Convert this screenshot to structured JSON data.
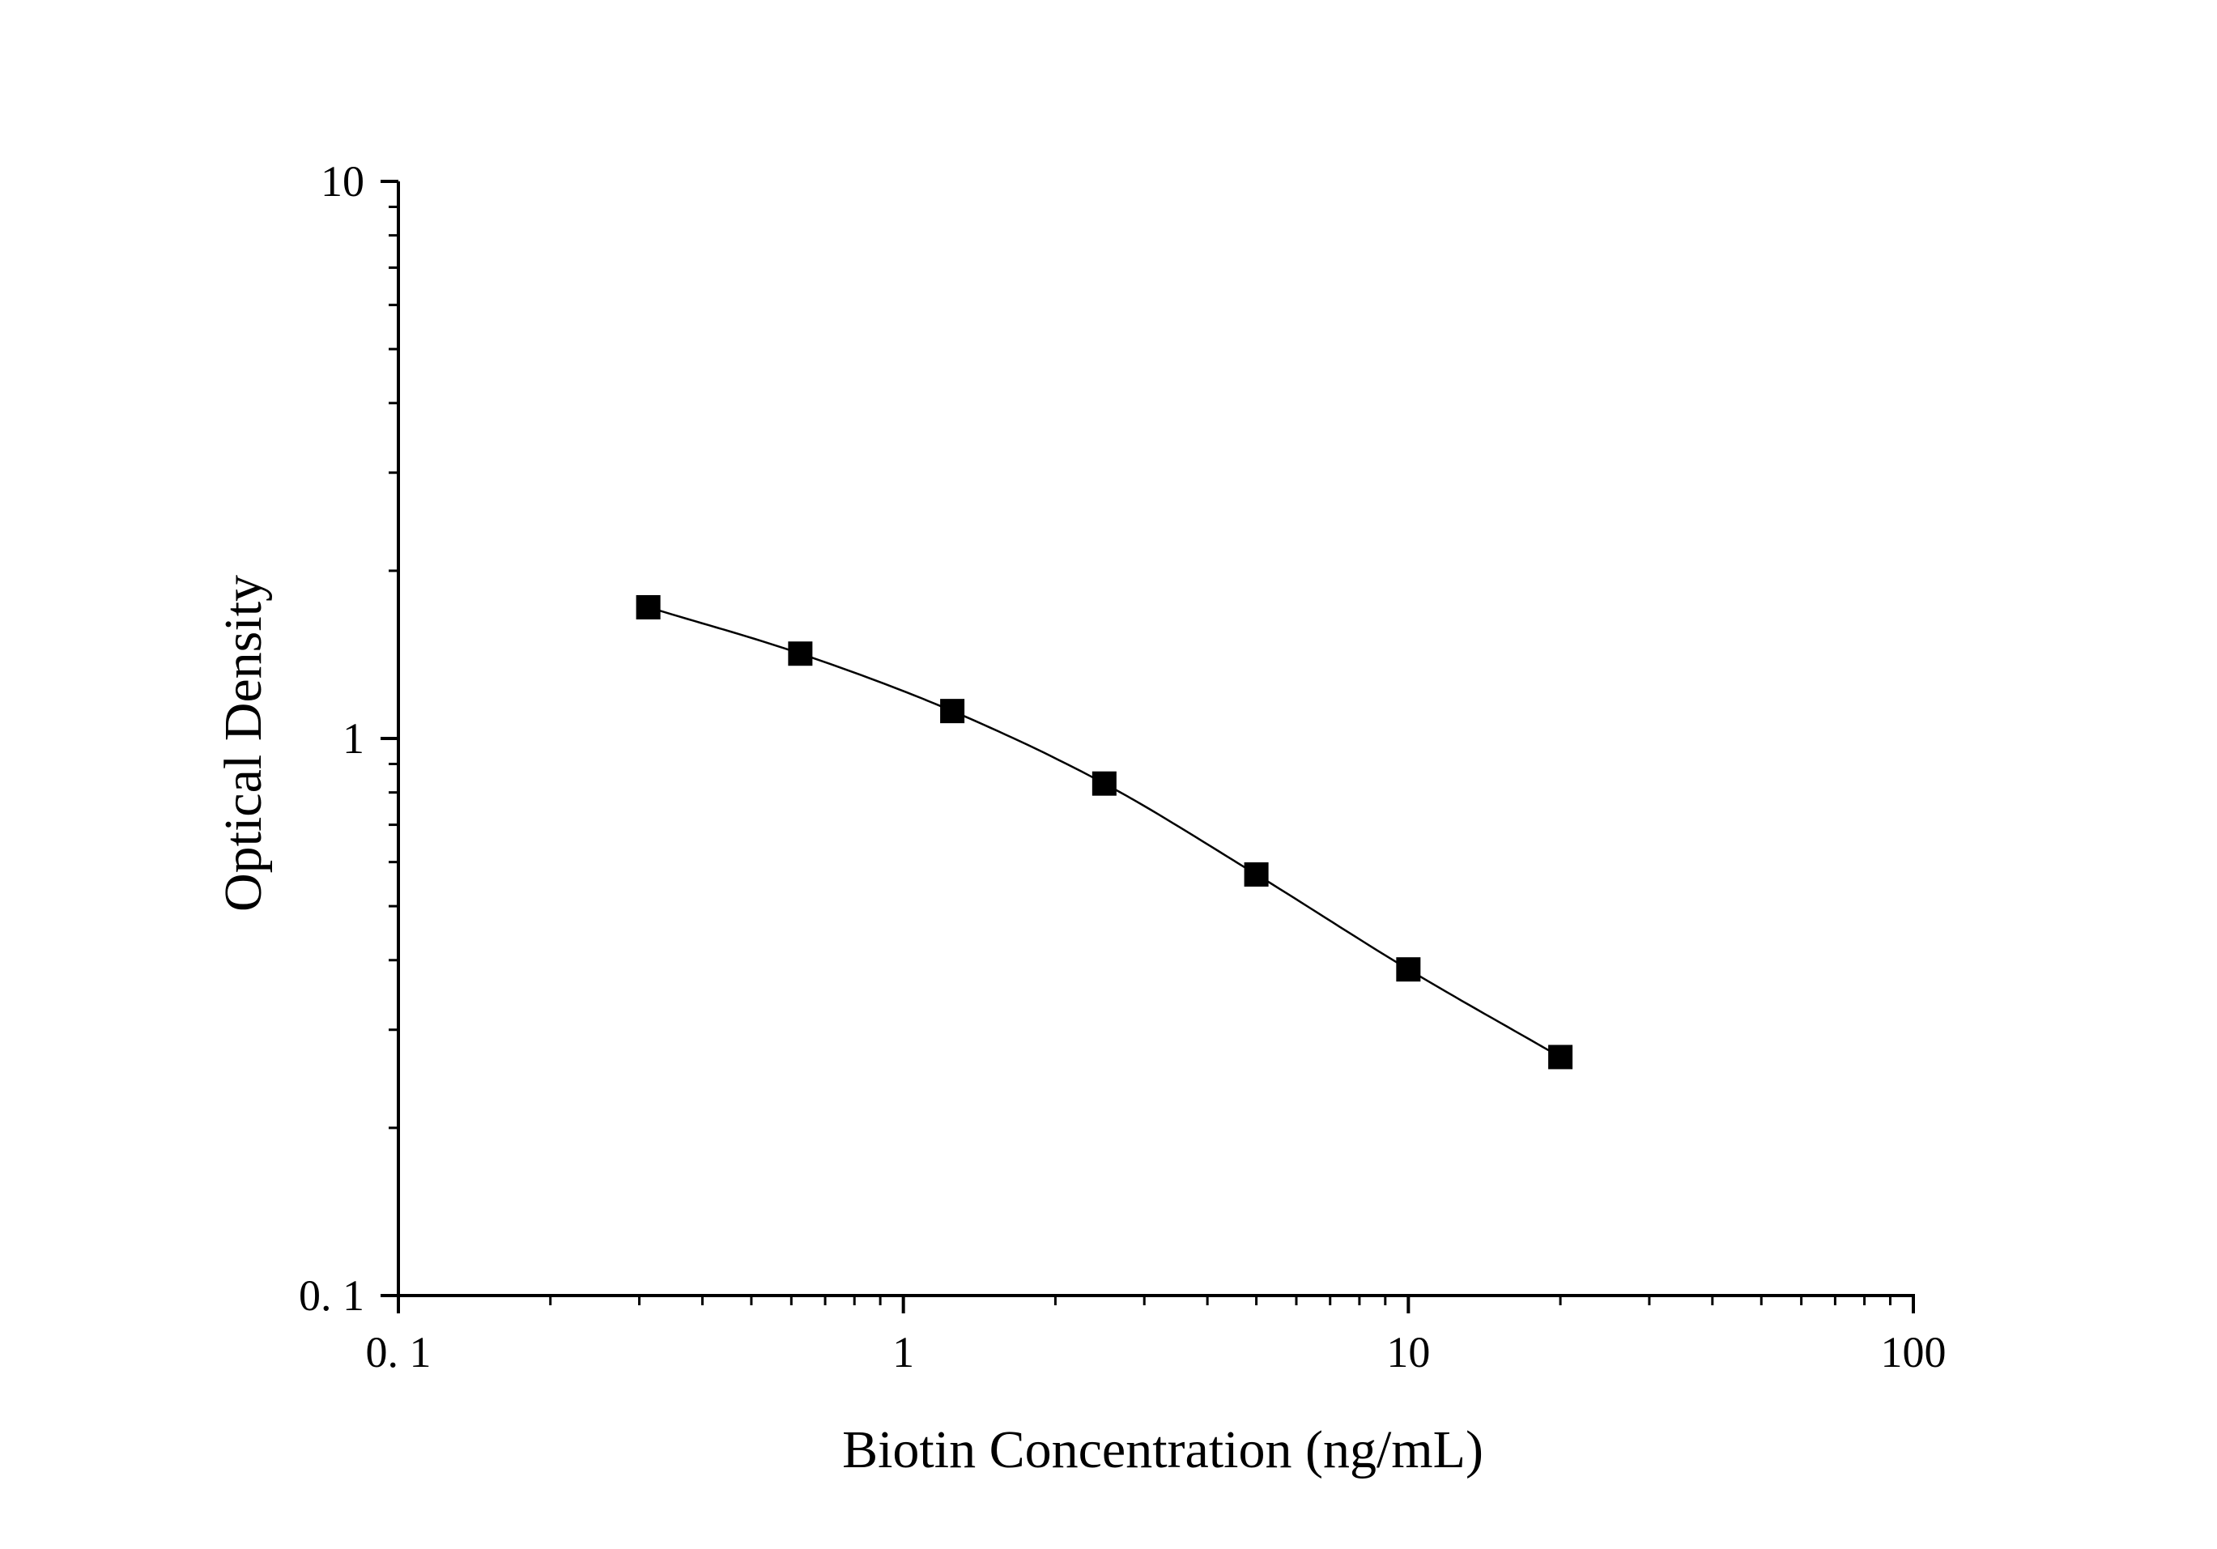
{
  "chart_data": {
    "type": "scatter",
    "xlabel": "Biotin Concentration (ng/mL)",
    "ylabel": "Optical Density",
    "xscale": "log",
    "yscale": "log",
    "xlim": [
      0.1,
      100
    ],
    "ylim": [
      0.1,
      10
    ],
    "xticks": [
      {
        "value": 0.1,
        "label": "0. 1"
      },
      {
        "value": 1,
        "label": "1"
      },
      {
        "value": 10,
        "label": "10"
      },
      {
        "value": 100,
        "label": "100"
      }
    ],
    "yticks": [
      {
        "value": 0.1,
        "label": "0. 1"
      },
      {
        "value": 1,
        "label": "1"
      },
      {
        "value": 10,
        "label": "10"
      }
    ],
    "grid": false,
    "marker": "square",
    "series": [
      {
        "x": [
          0.3125,
          0.625,
          1.25,
          2.5,
          5,
          10,
          20
        ],
        "y": [
          1.72,
          1.42,
          1.12,
          0.83,
          0.57,
          0.385,
          0.268
        ],
        "fit_curve": true
      }
    ],
    "colors": {
      "marker": "#000000",
      "line": "#000000",
      "axis": "#000000"
    }
  }
}
